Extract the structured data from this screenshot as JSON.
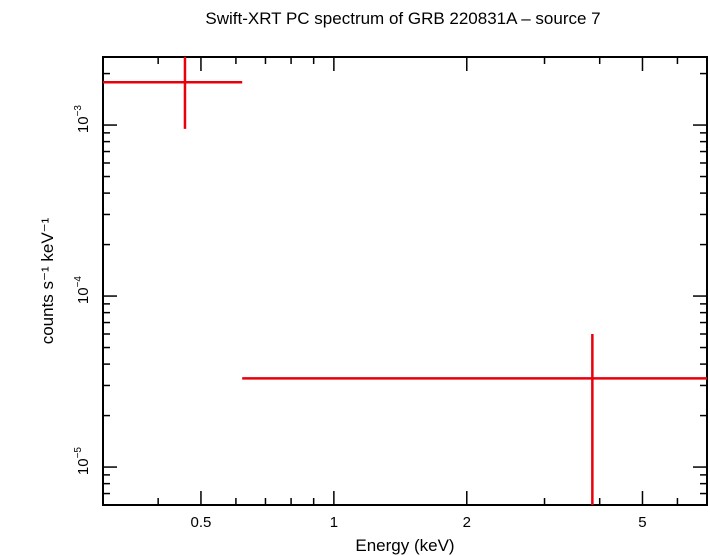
{
  "chart_data": {
    "type": "scatter",
    "title": "Swift-XRT PC spectrum of GRB 220831A – source 7",
    "xlabel": "Energy (keV)",
    "ylabel": "counts s⁻¹ keV⁻¹",
    "xscale": "log",
    "yscale": "log",
    "xlim": [
      0.3,
      7.0
    ],
    "ylim": [
      6e-06,
      0.0025
    ],
    "x_ticks": [
      {
        "value": 0.5,
        "label": "0.5"
      },
      {
        "value": 1,
        "label": "1"
      },
      {
        "value": 2,
        "label": "2"
      },
      {
        "value": 5,
        "label": "5"
      }
    ],
    "y_ticks": [
      {
        "value": 1e-05,
        "base": "10",
        "exp": "−5"
      },
      {
        "value": 0.0001,
        "base": "10",
        "exp": "−4"
      },
      {
        "value": 0.001,
        "base": "10",
        "exp": "−3"
      }
    ],
    "color": "#e8000b",
    "points": [
      {
        "x": 0.46,
        "x_lo": 0.3,
        "x_hi": 0.62,
        "y": 0.00178,
        "y_lo": 0.00095,
        "y_hi": 0.0025
      },
      {
        "x": 3.85,
        "x_lo": 0.62,
        "x_hi": 7.0,
        "y": 3.3e-05,
        "y_lo": 6e-06,
        "y_hi": 6e-05
      }
    ]
  }
}
